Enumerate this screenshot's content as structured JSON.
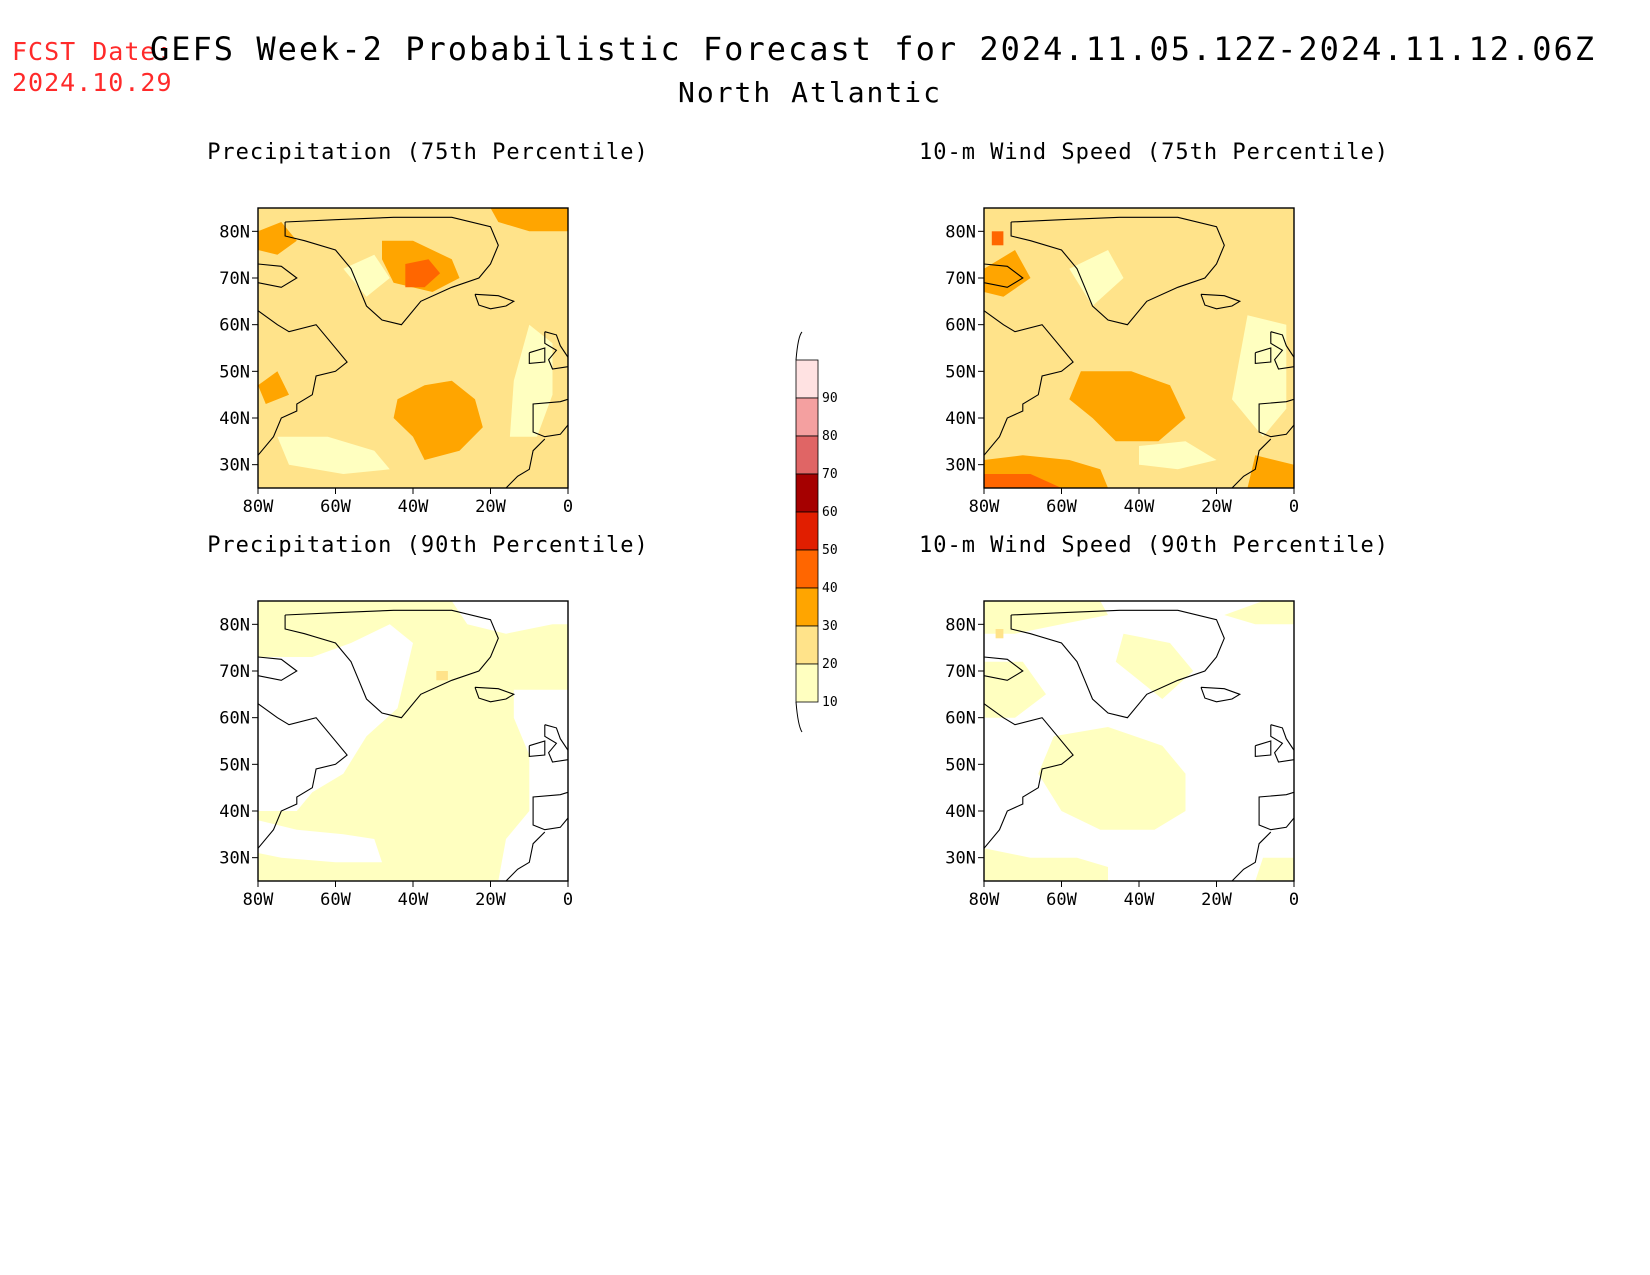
{
  "header": {
    "fcst_label": "FCST Date:",
    "fcst_date": "2024.10.29",
    "title": "GEFS Week-2 Probabilistic Forecast for 2024.11.05.12Z-2024.11.12.06Z",
    "region": "North Atlantic"
  },
  "axes": {
    "lat_labels": [
      "80N",
      "70N",
      "60N",
      "50N",
      "40N",
      "30N"
    ],
    "lat_values": [
      80,
      70,
      60,
      50,
      40,
      30
    ],
    "lon_labels": [
      "80W",
      "60W",
      "40W",
      "20W",
      "0"
    ],
    "lon_values": [
      -80,
      -60,
      -40,
      -20,
      0
    ],
    "lon_range": [
      -80,
      0
    ],
    "lat_range": [
      25,
      85
    ]
  },
  "panels": [
    {
      "id": "precip75",
      "title": "Precipitation (75th Percentile)",
      "background_level": 20,
      "regions": [
        {
          "level": 30,
          "points": [
            [
              -37,
              47
            ],
            [
              -30,
              48
            ],
            [
              -24,
              44
            ],
            [
              -22,
              38
            ],
            [
              -28,
              33
            ],
            [
              -37,
              31
            ],
            [
              -40,
              36
            ],
            [
              -45,
              40
            ],
            [
              -44,
              44
            ]
          ]
        },
        {
          "level": 30,
          "points": [
            [
              -48,
              78
            ],
            [
              -40,
              78
            ],
            [
              -30,
              74
            ],
            [
              -28,
              70
            ],
            [
              -35,
              67
            ],
            [
              -45,
              69
            ],
            [
              -48,
              74
            ]
          ]
        },
        {
          "level": 40,
          "points": [
            [
              -42,
              73
            ],
            [
              -36,
              74
            ],
            [
              -33,
              71
            ],
            [
              -37,
              68
            ],
            [
              -42,
              68
            ]
          ]
        },
        {
          "level": 30,
          "points": [
            [
              -80,
              80
            ],
            [
              -74,
              82
            ],
            [
              -70,
              78
            ],
            [
              -75,
              75
            ],
            [
              -80,
              76
            ]
          ]
        },
        {
          "level": 30,
          "points": [
            [
              -20,
              85
            ],
            [
              0,
              85
            ],
            [
              0,
              80
            ],
            [
              -10,
              80
            ],
            [
              -18,
              82
            ]
          ]
        },
        {
          "level": 30,
          "points": [
            [
              -80,
              47
            ],
            [
              -75,
              50
            ],
            [
              -72,
              45
            ],
            [
              -78,
              43
            ]
          ]
        },
        {
          "level": 10,
          "points": [
            [
              -75,
              36
            ],
            [
              -62,
              36
            ],
            [
              -50,
              33
            ],
            [
              -46,
              29
            ],
            [
              -58,
              28
            ],
            [
              -72,
              30
            ]
          ]
        },
        {
          "level": 10,
          "points": [
            [
              -10,
              60
            ],
            [
              -4,
              56
            ],
            [
              -4,
              45
            ],
            [
              -8,
              36
            ],
            [
              -15,
              36
            ],
            [
              -14,
              48
            ]
          ]
        },
        {
          "level": 10,
          "points": [
            [
              -58,
              72
            ],
            [
              -50,
              75
            ],
            [
              -46,
              70
            ],
            [
              -52,
              66
            ]
          ]
        }
      ]
    },
    {
      "id": "wind75",
      "title": "10-m Wind Speed (75th Percentile)",
      "background_level": 20,
      "regions": [
        {
          "level": 30,
          "points": [
            [
              -55,
              50
            ],
            [
              -42,
              50
            ],
            [
              -32,
              47
            ],
            [
              -28,
              40
            ],
            [
              -35,
              35
            ],
            [
              -46,
              35
            ],
            [
              -52,
              40
            ],
            [
              -58,
              44
            ]
          ]
        },
        {
          "level": 30,
          "points": [
            [
              -80,
              31
            ],
            [
              -70,
              32
            ],
            [
              -58,
              31
            ],
            [
              -50,
              29
            ],
            [
              -48,
              25
            ],
            [
              -80,
              25
            ]
          ]
        },
        {
          "level": 40,
          "points": [
            [
              -80,
              28
            ],
            [
              -68,
              28
            ],
            [
              -60,
              25
            ],
            [
              -80,
              25
            ]
          ]
        },
        {
          "level": 30,
          "points": [
            [
              -80,
              72
            ],
            [
              -72,
              76
            ],
            [
              -68,
              70
            ],
            [
              -75,
              66
            ],
            [
              -80,
              67
            ]
          ]
        },
        {
          "level": 40,
          "points": [
            [
              -78,
              80
            ],
            [
              -75,
              80
            ],
            [
              -75,
              77
            ],
            [
              -78,
              77
            ]
          ]
        },
        {
          "level": 30,
          "points": [
            [
              -10,
              32
            ],
            [
              0,
              30
            ],
            [
              0,
              25
            ],
            [
              -12,
              25
            ]
          ]
        },
        {
          "level": 10,
          "points": [
            [
              -58,
              72
            ],
            [
              -48,
              76
            ],
            [
              -44,
              70
            ],
            [
              -52,
              64
            ]
          ]
        },
        {
          "level": 10,
          "points": [
            [
              -12,
              62
            ],
            [
              -2,
              60
            ],
            [
              -2,
              42
            ],
            [
              -8,
              36
            ],
            [
              -16,
              44
            ]
          ]
        },
        {
          "level": 10,
          "points": [
            [
              -40,
              34
            ],
            [
              -28,
              35
            ],
            [
              -20,
              31
            ],
            [
              -30,
              29
            ],
            [
              -40,
              30
            ]
          ]
        }
      ]
    },
    {
      "id": "precip90",
      "title": "Precipitation (90th Percentile)",
      "background_level": 10,
      "regions": [
        {
          "level": 0,
          "points": [
            [
              -80,
              73
            ],
            [
              -66,
              73
            ],
            [
              -56,
              76
            ],
            [
              -46,
              80
            ],
            [
              -40,
              76
            ],
            [
              -44,
              62
            ],
            [
              -52,
              56
            ],
            [
              -58,
              48
            ],
            [
              -66,
              44
            ],
            [
              -70,
              40
            ],
            [
              -80,
              40
            ]
          ]
        },
        {
          "level": 0,
          "points": [
            [
              -80,
              38
            ],
            [
              -70,
              36
            ],
            [
              -58,
              35
            ],
            [
              -50,
              34
            ],
            [
              -48,
              29
            ],
            [
              -60,
              29
            ],
            [
              -74,
              30
            ],
            [
              -80,
              31
            ]
          ]
        },
        {
          "level": 0,
          "points": [
            [
              -14,
              66
            ],
            [
              0,
              66
            ],
            [
              0,
              25
            ],
            [
              -18,
              25
            ],
            [
              -16,
              34
            ],
            [
              -10,
              40
            ],
            [
              -10,
              52
            ],
            [
              -14,
              60
            ]
          ]
        },
        {
          "level": 0,
          "points": [
            [
              -30,
              85
            ],
            [
              -26,
              80
            ],
            [
              -16,
              78
            ],
            [
              -4,
              80
            ],
            [
              0,
              80
            ],
            [
              0,
              85
            ]
          ]
        },
        {
          "level": 20,
          "points": [
            [
              -34,
              70
            ],
            [
              -31,
              70
            ],
            [
              -31,
              68
            ],
            [
              -34,
              68
            ]
          ]
        }
      ]
    },
    {
      "id": "wind90",
      "title": "10-m Wind Speed (90th Percentile)",
      "background_level": 0,
      "regions": [
        {
          "level": 10,
          "points": [
            [
              -62,
              56
            ],
            [
              -48,
              58
            ],
            [
              -34,
              54
            ],
            [
              -28,
              48
            ],
            [
              -28,
              40
            ],
            [
              -36,
              36
            ],
            [
              -50,
              36
            ],
            [
              -60,
              40
            ],
            [
              -66,
              48
            ]
          ]
        },
        {
          "level": 10,
          "points": [
            [
              -80,
              32
            ],
            [
              -68,
              30
            ],
            [
              -56,
              30
            ],
            [
              -48,
              28
            ],
            [
              -48,
              25
            ],
            [
              -80,
              25
            ]
          ]
        },
        {
          "level": 10,
          "points": [
            [
              -44,
              78
            ],
            [
              -32,
              76
            ],
            [
              -26,
              70
            ],
            [
              -34,
              64
            ],
            [
              -40,
              68
            ],
            [
              -46,
              72
            ]
          ]
        },
        {
          "level": 10,
          "points": [
            [
              -80,
              85
            ],
            [
              -50,
              85
            ],
            [
              -48,
              82
            ],
            [
              -60,
              80
            ],
            [
              -72,
              78
            ],
            [
              -80,
              78
            ]
          ]
        },
        {
          "level": 10,
          "points": [
            [
              -80,
              72
            ],
            [
              -70,
              72
            ],
            [
              -64,
              65
            ],
            [
              -72,
              60
            ],
            [
              -80,
              60
            ]
          ]
        },
        {
          "level": 10,
          "points": [
            [
              -18,
              82
            ],
            [
              -8,
              85
            ],
            [
              0,
              85
            ],
            [
              0,
              80
            ],
            [
              -10,
              80
            ]
          ]
        },
        {
          "level": 10,
          "points": [
            [
              -8,
              30
            ],
            [
              0,
              30
            ],
            [
              0,
              25
            ],
            [
              -10,
              25
            ]
          ]
        },
        {
          "level": 20,
          "points": [
            [
              -77,
              79
            ],
            [
              -75,
              79
            ],
            [
              -75,
              77
            ],
            [
              -77,
              77
            ]
          ]
        }
      ]
    }
  ],
  "colorbar": {
    "levels": [
      10,
      20,
      30,
      40,
      50,
      60,
      70,
      80,
      90
    ],
    "colors": [
      "#ffffc0",
      "#ffe38a",
      "#ffa500",
      "#ff6600",
      "#e11e00",
      "#a50000",
      "#e06565",
      "#f4a0a0",
      "#ffe2e2"
    ]
  }
}
